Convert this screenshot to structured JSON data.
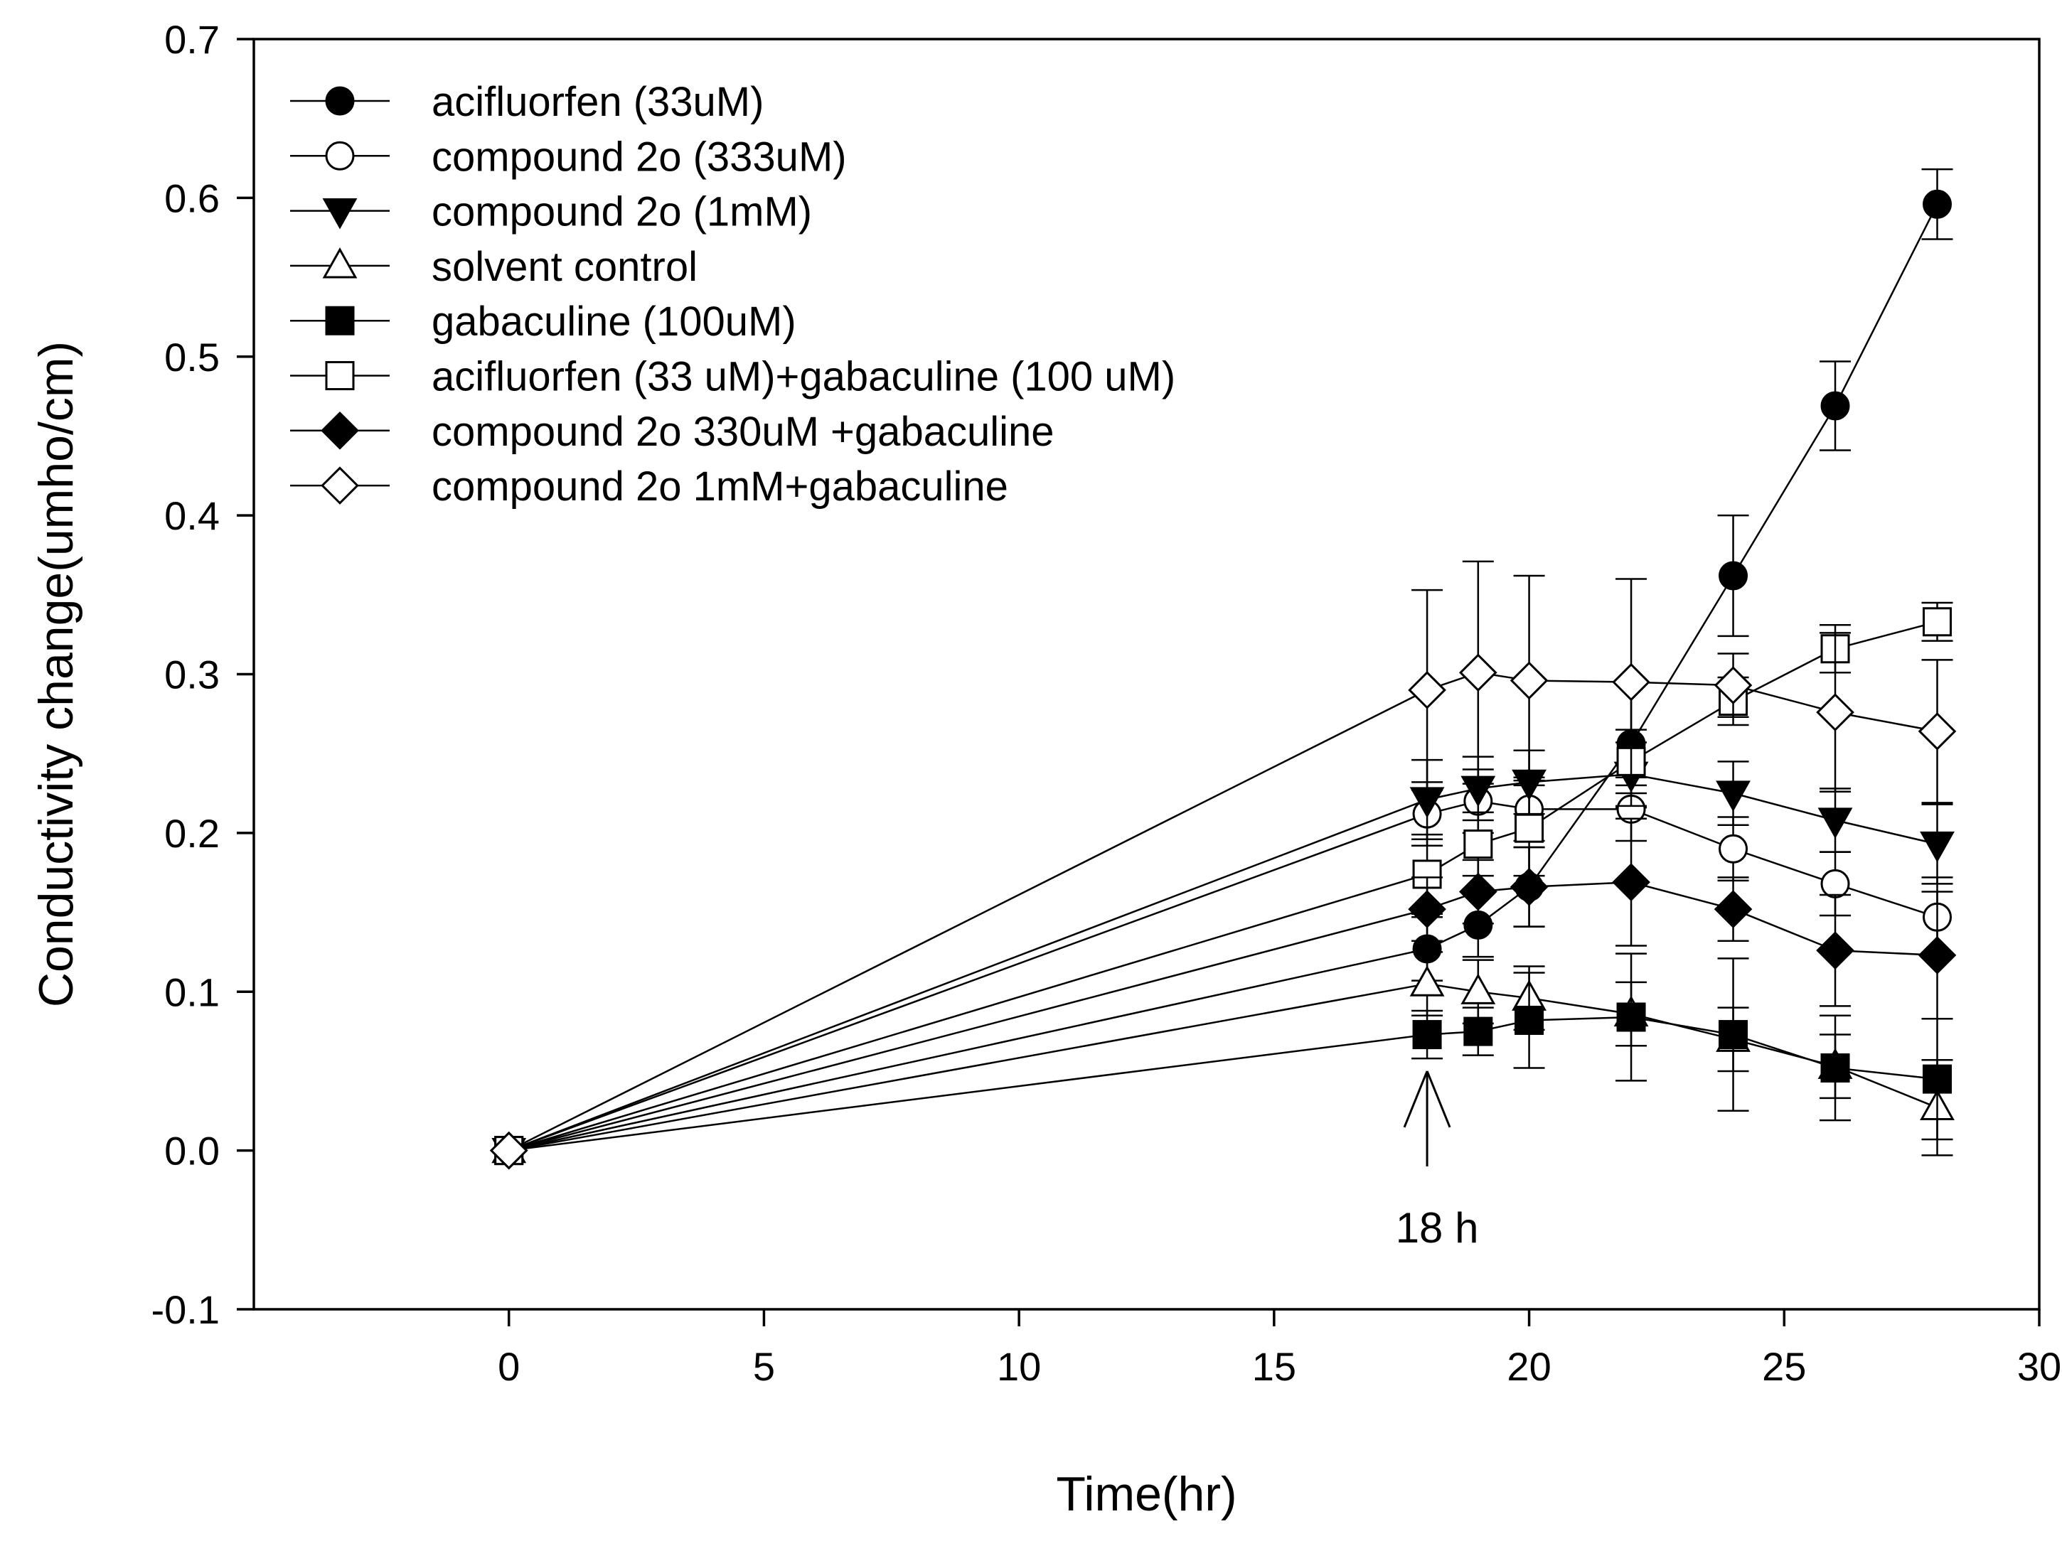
{
  "chart_data": {
    "type": "line",
    "title": "",
    "xlabel": "Time(hr)",
    "ylabel": "Conductivity change(umho/cm)",
    "xlim": [
      -5,
      30
    ],
    "ylim": [
      -0.1,
      0.7
    ],
    "xticks": [
      0,
      5,
      10,
      15,
      20,
      25,
      30
    ],
    "xtick_labels": [
      "0",
      "5",
      "10",
      "15",
      "20",
      "25",
      "30"
    ],
    "yticks": [
      -0.1,
      0.0,
      0.1,
      0.2,
      0.3,
      0.4,
      0.5,
      0.6,
      0.7
    ],
    "ytick_labels": [
      "-0.1",
      "0.0",
      "0.1",
      "0.2",
      "0.3",
      "0.4",
      "0.5",
      "0.6",
      "0.7"
    ],
    "grid": false,
    "legend_position": "top-left",
    "annotation": {
      "text": "18 h",
      "x": 18,
      "points_to_y": 0.05,
      "arrow_from_y": -0.01
    },
    "x": [
      0,
      18,
      19,
      20,
      22,
      24,
      26,
      28
    ],
    "series": [
      {
        "name": "acifluorfen (33uM)",
        "marker": "circle",
        "filled": true,
        "values": [
          0,
          0.127,
          0.142,
          0.166,
          0.256,
          0.362,
          0.469,
          0.596
        ],
        "errors": [
          0,
          0.02,
          0.02,
          0.025,
          0.04,
          0.038,
          0.028,
          0.022
        ]
      },
      {
        "name": "compound 2o (333uM)",
        "marker": "circle",
        "filled": false,
        "values": [
          0,
          0.212,
          0.22,
          0.215,
          0.215,
          0.19,
          0.168,
          0.147
        ],
        "errors": [
          0,
          0.02,
          0.02,
          0.02,
          0.02,
          0.02,
          0.02,
          0.025
        ]
      },
      {
        "name": "compound 2o (1mM)",
        "marker": "triangle-down",
        "filled": true,
        "values": [
          0,
          0.221,
          0.228,
          0.232,
          0.237,
          0.225,
          0.208,
          0.193
        ],
        "errors": [
          0,
          0.025,
          0.02,
          0.02,
          0.02,
          0.02,
          0.02,
          0.025
        ]
      },
      {
        "name": "solvent control",
        "marker": "triangle-up",
        "filled": false,
        "values": [
          0,
          0.105,
          0.1,
          0.096,
          0.086,
          0.07,
          0.053,
          0.027
        ],
        "errors": [
          0,
          0.02,
          0.02,
          0.02,
          0.02,
          0.02,
          0.02,
          0.03
        ]
      },
      {
        "name": "gabaculine (100uM)",
        "marker": "square",
        "filled": true,
        "values": [
          0,
          0.073,
          0.075,
          0.082,
          0.084,
          0.073,
          0.052,
          0.045
        ],
        "errors": [
          0,
          0.015,
          0.015,
          0.03,
          0.04,
          0.048,
          0.033,
          0.038
        ]
      },
      {
        "name": "acifluorfen (33 uM)+gabaculine (100 uM)",
        "marker": "square",
        "filled": false,
        "values": [
          0,
          0.174,
          0.193,
          0.203,
          0.245,
          0.283,
          0.316,
          0.333
        ],
        "errors": [
          0,
          0.025,
          0.02,
          0.03,
          0.02,
          0.015,
          0.015,
          0.012
        ]
      },
      {
        "name": "compound 2o 330uM +gabaculine",
        "marker": "diamond",
        "filled": true,
        "values": [
          0,
          0.152,
          0.163,
          0.166,
          0.169,
          0.152,
          0.126,
          0.123
        ],
        "errors": [
          0,
          0.02,
          0.02,
          0.025,
          0.04,
          0.02,
          0.035,
          0.04
        ]
      },
      {
        "name": "compound 2o 1mM+gabaculine",
        "marker": "diamond",
        "filled": false,
        "values": [
          0,
          0.29,
          0.301,
          0.296,
          0.295,
          0.293,
          0.276,
          0.264
        ],
        "errors": [
          0,
          0.063,
          0.07,
          0.066,
          0.065,
          0.02,
          0.05,
          0.045
        ]
      }
    ]
  }
}
